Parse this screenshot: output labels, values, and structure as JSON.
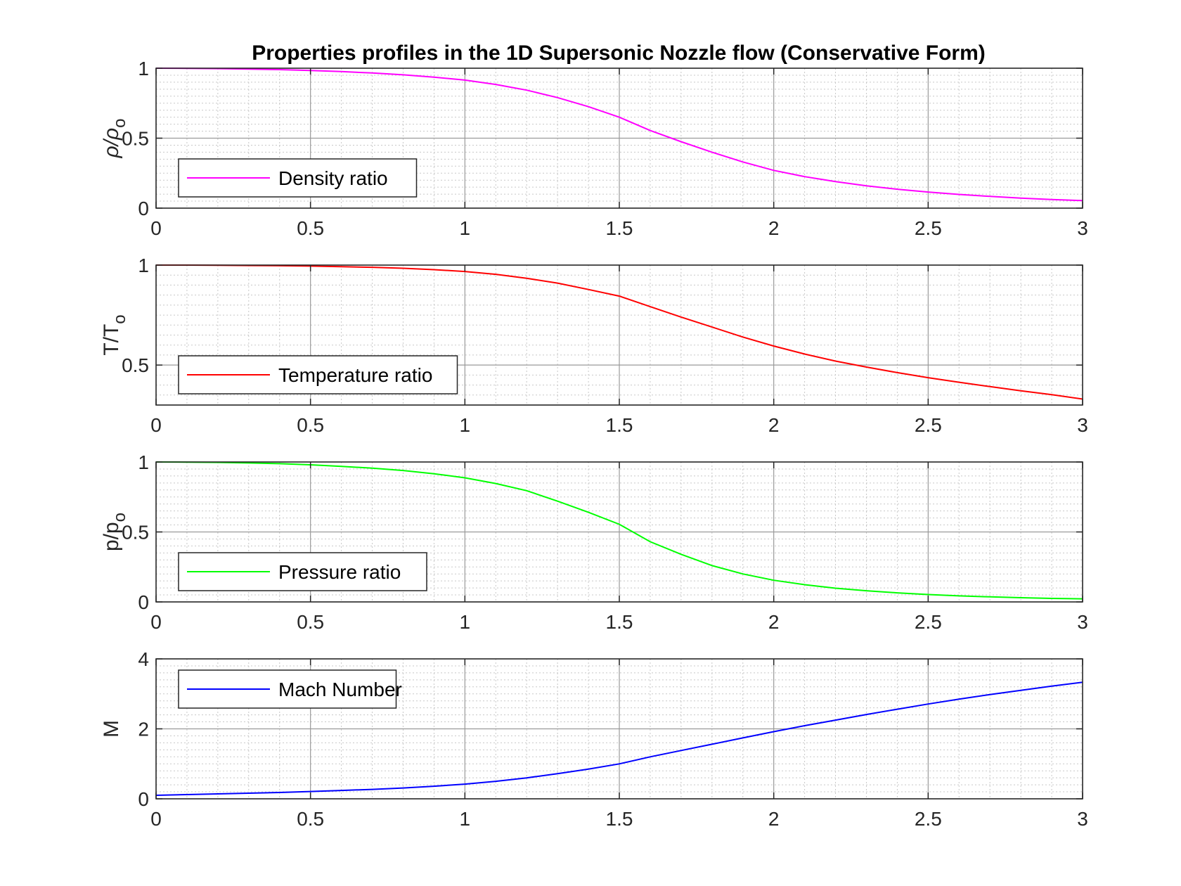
{
  "chart_data": {
    "type": "line",
    "title": "Properties profiles in the 1D Supersonic Nozzle flow (Conservative Form)",
    "grid": "major and minor",
    "x": [
      0,
      0.1,
      0.2,
      0.3,
      0.4,
      0.5,
      0.6,
      0.7,
      0.8,
      0.9,
      1.0,
      1.1,
      1.2,
      1.3,
      1.4,
      1.5,
      1.6,
      1.7,
      1.8,
      1.9,
      2.0,
      2.1,
      2.2,
      2.3,
      2.4,
      2.5,
      2.6,
      2.7,
      2.8,
      2.9,
      3.0
    ],
    "xlim": [
      0,
      3
    ],
    "xticks": [
      "0",
      "0.5",
      "1",
      "1.5",
      "2",
      "2.5",
      "3"
    ],
    "subplots": [
      {
        "ylabel_main": "ρ/ρ",
        "ylabel_sub": "o",
        "ylim": [
          0,
          1
        ],
        "yticks": [
          {
            "v": 0,
            "label": "0"
          },
          {
            "v": 0.5,
            "label": "0.5"
          },
          {
            "v": 1,
            "label": "1"
          }
        ],
        "legend": {
          "label": "Density ratio",
          "position": "bottom-left"
        },
        "color": "#ff00ff",
        "series": [
          {
            "name": "Density ratio",
            "values": [
              1.0,
              0.999,
              0.997,
              0.994,
              0.99,
              0.984,
              0.976,
              0.966,
              0.953,
              0.936,
              0.915,
              0.884,
              0.843,
              0.79,
              0.725,
              0.65,
              0.555,
              0.475,
              0.4,
              0.33,
              0.27,
              0.225,
              0.19,
              0.16,
              0.135,
              0.115,
              0.098,
              0.084,
              0.072,
              0.062,
              0.054
            ]
          }
        ]
      },
      {
        "ylabel_main": "T/T",
        "ylabel_sub": "o",
        "ylim": [
          0.3,
          1
        ],
        "yticks": [
          {
            "v": 0.5,
            "label": "0.5"
          },
          {
            "v": 1,
            "label": "1"
          }
        ],
        "legend": {
          "label": "Temperature ratio",
          "position": "bottom-left"
        },
        "color": "#ff0000",
        "series": [
          {
            "name": "Temperature ratio",
            "values": [
              1.0,
              1.0,
              0.999,
              0.998,
              0.997,
              0.995,
              0.992,
              0.989,
              0.984,
              0.977,
              0.968,
              0.954,
              0.934,
              0.91,
              0.878,
              0.845,
              0.792,
              0.74,
              0.69,
              0.64,
              0.595,
              0.555,
              0.52,
              0.49,
              0.462,
              0.437,
              0.414,
              0.392,
              0.371,
              0.352,
              0.33
            ]
          }
        ]
      },
      {
        "ylabel_main": "p/p",
        "ylabel_sub": "o",
        "ylim": [
          0,
          1
        ],
        "yticks": [
          {
            "v": 0,
            "label": "0"
          },
          {
            "v": 0.5,
            "label": "0.5"
          },
          {
            "v": 1,
            "label": "1"
          }
        ],
        "legend": {
          "label": "Pressure ratio",
          "position": "bottom-left"
        },
        "color": "#00ff00",
        "series": [
          {
            "name": "Pressure ratio",
            "values": [
              1.0,
              0.999,
              0.997,
              0.993,
              0.988,
              0.98,
              0.969,
              0.956,
              0.939,
              0.916,
              0.887,
              0.846,
              0.795,
              0.72,
              0.64,
              0.555,
              0.43,
              0.34,
              0.26,
              0.2,
              0.155,
              0.123,
              0.098,
              0.08,
              0.065,
              0.053,
              0.043,
              0.036,
              0.03,
              0.025,
              0.022
            ]
          }
        ]
      },
      {
        "ylabel_main": "M",
        "ylabel_sub": "",
        "ylim": [
          0,
          4
        ],
        "yticks": [
          {
            "v": 0,
            "label": "0"
          },
          {
            "v": 2,
            "label": "2"
          },
          {
            "v": 4,
            "label": "4"
          }
        ],
        "legend": {
          "label": "Mach Number",
          "position": "top-left"
        },
        "color": "#0000ff",
        "series": [
          {
            "name": "Mach Number",
            "values": [
              0.1,
              0.12,
              0.14,
              0.16,
              0.18,
              0.21,
              0.24,
              0.27,
              0.31,
              0.36,
              0.42,
              0.5,
              0.6,
              0.72,
              0.85,
              1.0,
              1.2,
              1.38,
              1.56,
              1.74,
              1.92,
              2.09,
              2.25,
              2.41,
              2.56,
              2.71,
              2.85,
              2.98,
              3.1,
              3.22,
              3.33
            ]
          }
        ]
      }
    ]
  }
}
